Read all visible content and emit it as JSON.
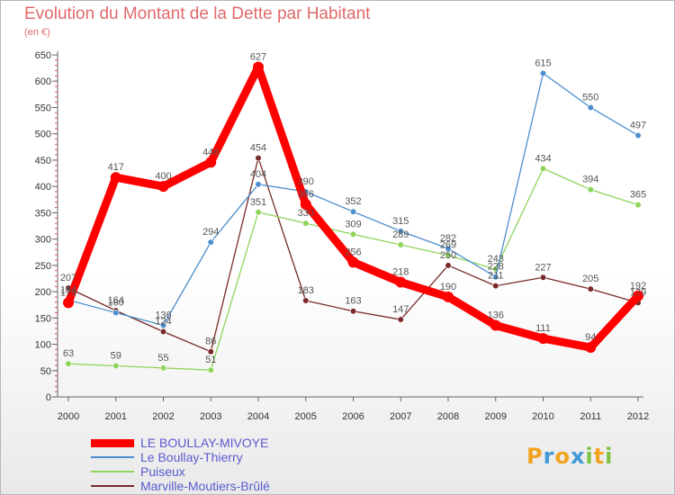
{
  "chart_data": {
    "type": "line",
    "title": "Evolution du Montant de la Dette par Habitant",
    "subtitle": "(en €)",
    "xlabel": "",
    "ylabel": "",
    "categories": [
      "2000",
      "2001",
      "2002",
      "2003",
      "2004",
      "2005",
      "2006",
      "2007",
      "2008",
      "2009",
      "2010",
      "2011",
      "2012"
    ],
    "ylim": [
      0,
      650
    ],
    "yticks": [
      0,
      50,
      100,
      150,
      200,
      250,
      300,
      350,
      400,
      450,
      500,
      550,
      600,
      650
    ],
    "grid": false,
    "legend_position": "bottom-left",
    "series": [
      {
        "name": "LE BOULLAY-MIVOYE",
        "color": "#ff0000",
        "emphasis": true,
        "values": [
          179,
          417,
          400,
          446,
          627,
          366,
          256,
          218,
          190,
          136,
          111,
          94,
          192
        ]
      },
      {
        "name": "Le Boullay-Thierry",
        "color": "#4d8fce",
        "emphasis": false,
        "values": [
          184,
          160,
          136,
          294,
          404,
          390,
          352,
          315,
          282,
          228,
          615,
          550,
          497
        ]
      },
      {
        "name": "Puiseux",
        "color": "#8fd45a",
        "emphasis": false,
        "values": [
          63,
          59,
          55,
          51,
          351,
          330,
          309,
          289,
          269,
          243,
          434,
          394,
          365
        ]
      },
      {
        "name": "Marville-Moutiers-Brûlé",
        "color": "#7a2a2a",
        "emphasis": false,
        "values": [
          207,
          164,
          124,
          86,
          454,
          183,
          163,
          147,
          250,
          211,
          227,
          205,
          179
        ]
      }
    ]
  },
  "logo": {
    "letters": [
      "P",
      "r",
      "o",
      "x",
      "i",
      "t",
      "i"
    ],
    "colors": [
      "#f2a321",
      "#3f9ad6",
      "#f2a321",
      "#3f9ad6",
      "#7dc242",
      "#f2a321",
      "#7dc242"
    ]
  }
}
